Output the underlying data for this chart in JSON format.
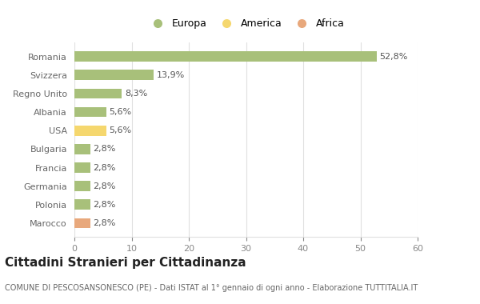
{
  "categories": [
    "Marocco",
    "Polonia",
    "Germania",
    "Francia",
    "Bulgaria",
    "USA",
    "Albania",
    "Regno Unito",
    "Svizzera",
    "Romania"
  ],
  "values": [
    2.8,
    2.8,
    2.8,
    2.8,
    2.8,
    5.6,
    5.6,
    8.3,
    13.9,
    52.8
  ],
  "colors": [
    "#e8a87c",
    "#a8c07a",
    "#a8c07a",
    "#a8c07a",
    "#a8c07a",
    "#f5d76e",
    "#a8c07a",
    "#a8c07a",
    "#a8c07a",
    "#a8c07a"
  ],
  "labels": [
    "2,8%",
    "2,8%",
    "2,8%",
    "2,8%",
    "2,8%",
    "5,6%",
    "5,6%",
    "8,3%",
    "13,9%",
    "52,8%"
  ],
  "xlim": [
    0,
    60
  ],
  "xticks": [
    0,
    10,
    20,
    30,
    40,
    50,
    60
  ],
  "title": "Cittadini Stranieri per Cittadinanza",
  "subtitle": "COMUNE DI PESCOSANSONESCO (PE) - Dati ISTAT al 1° gennaio di ogni anno - Elaborazione TUTTITALIA.IT",
  "legend_labels": [
    "Europa",
    "America",
    "Africa"
  ],
  "legend_colors": [
    "#a8c07a",
    "#f5d76e",
    "#e8a87c"
  ],
  "background_color": "#ffffff",
  "bar_height": 0.55,
  "grid_color": "#e0e0e0",
  "label_fontsize": 8,
  "title_fontsize": 11,
  "subtitle_fontsize": 7,
  "ytick_fontsize": 8,
  "xtick_fontsize": 8
}
